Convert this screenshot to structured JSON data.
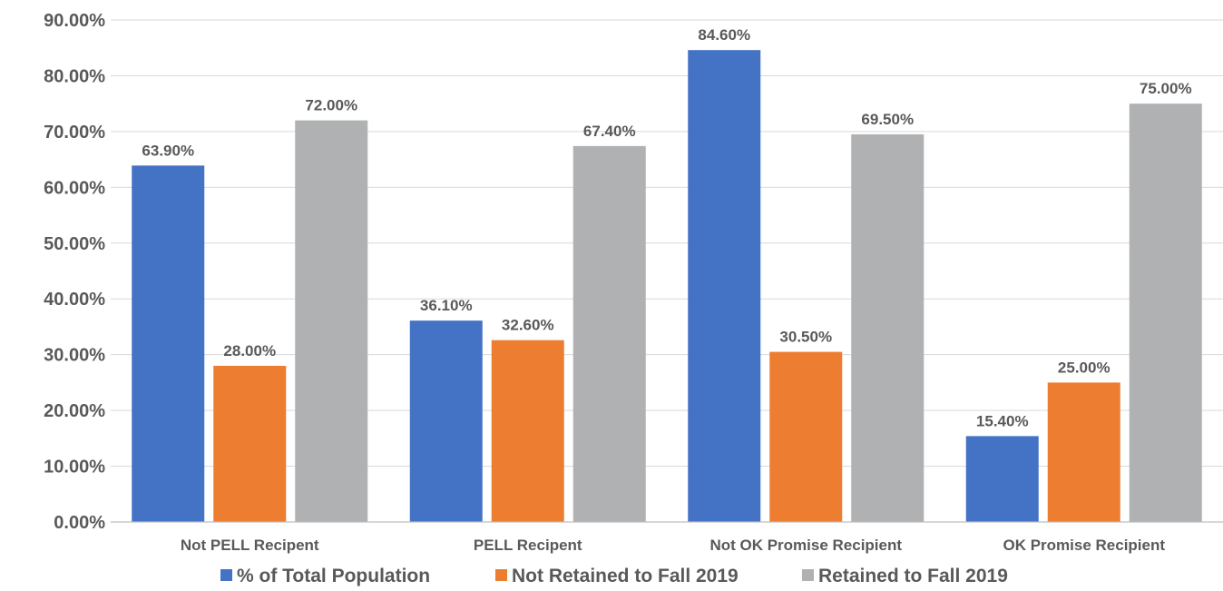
{
  "chart_data": {
    "type": "bar",
    "categories": [
      "Not PELL Recipent",
      "PELL Recipent",
      "Not OK Promise Recipient",
      "OK Promise Recipient"
    ],
    "series": [
      {
        "name": "% of Total Population",
        "values": [
          63.9,
          36.1,
          84.6,
          15.4
        ],
        "labels": [
          "63.90%",
          "36.10%",
          "84.60%",
          "15.40%"
        ],
        "color": "#4472c4"
      },
      {
        "name": "Not Retained to Fall 2019",
        "values": [
          28.0,
          32.6,
          30.5,
          25.0
        ],
        "labels": [
          "28.00%",
          "32.60%",
          "30.50%",
          "25.00%"
        ],
        "color": "#ed7d31"
      },
      {
        "name": "Retained to Fall 2019",
        "values": [
          72.0,
          67.4,
          69.5,
          75.0
        ],
        "labels": [
          "72.00%",
          "67.40%",
          "69.50%",
          "75.00%"
        ],
        "color": "#b0b1b3"
      }
    ],
    "y_ticks": [
      "0.00%",
      "10.00%",
      "20.00%",
      "30.00%",
      "40.00%",
      "50.00%",
      "60.00%",
      "70.00%",
      "80.00%",
      "90.00%"
    ],
    "ylim": [
      0,
      90
    ],
    "grid": true,
    "legend_position": "bottom"
  }
}
